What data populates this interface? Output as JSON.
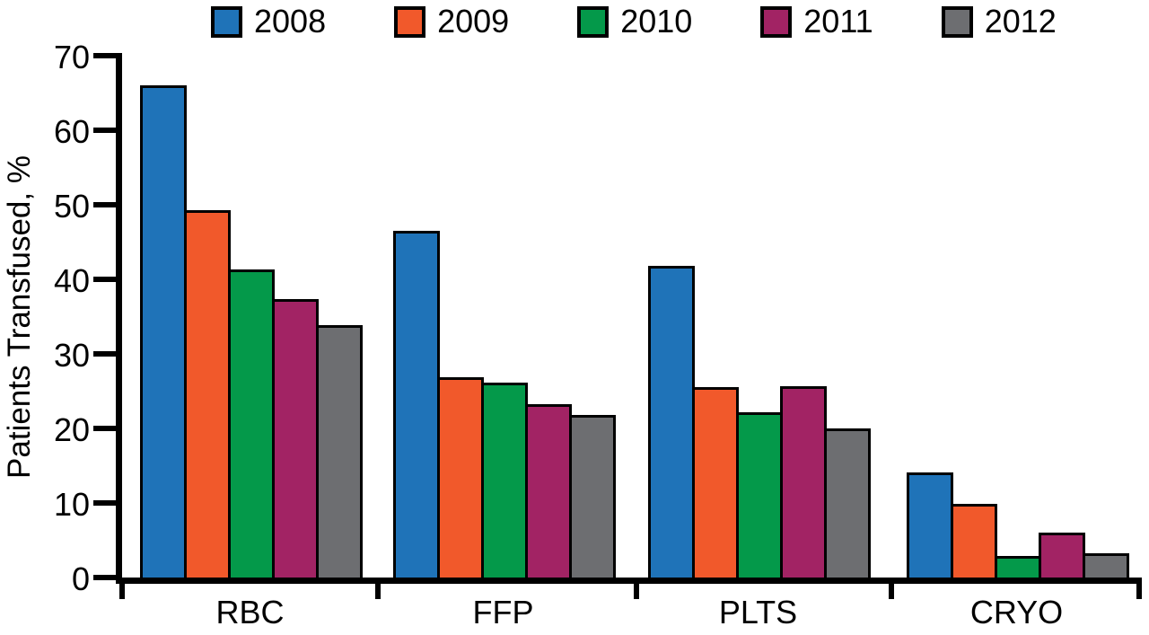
{
  "chart_data": {
    "type": "bar",
    "title": "",
    "ylabel": "Patients Transfused, %",
    "xlabel": "",
    "ylim": [
      0,
      70
    ],
    "yticks": [
      70,
      60,
      50,
      40,
      30,
      20,
      10,
      0
    ],
    "grid": false,
    "legend_position": "top",
    "bar_border_color": "#000000",
    "background_color": "#ffffff",
    "categories": [
      "RBC",
      "FFP",
      "PLTS",
      "CRYO"
    ],
    "series": [
      {
        "name": "2008",
        "color": "#1F73B8",
        "values": [
          66.0,
          46.5,
          41.8,
          14.1
        ]
      },
      {
        "name": "2009",
        "color": "#F1592B",
        "values": [
          49.3,
          26.9,
          25.5,
          9.9
        ]
      },
      {
        "name": "2010",
        "color": "#04994A",
        "values": [
          41.3,
          26.1,
          22.2,
          2.9
        ]
      },
      {
        "name": "2011",
        "color": "#A22364",
        "values": [
          37.3,
          23.3,
          25.7,
          6.0
        ]
      },
      {
        "name": "2012",
        "color": "#6D6E71",
        "values": [
          33.9,
          21.8,
          20.0,
          3.3
        ]
      }
    ]
  }
}
